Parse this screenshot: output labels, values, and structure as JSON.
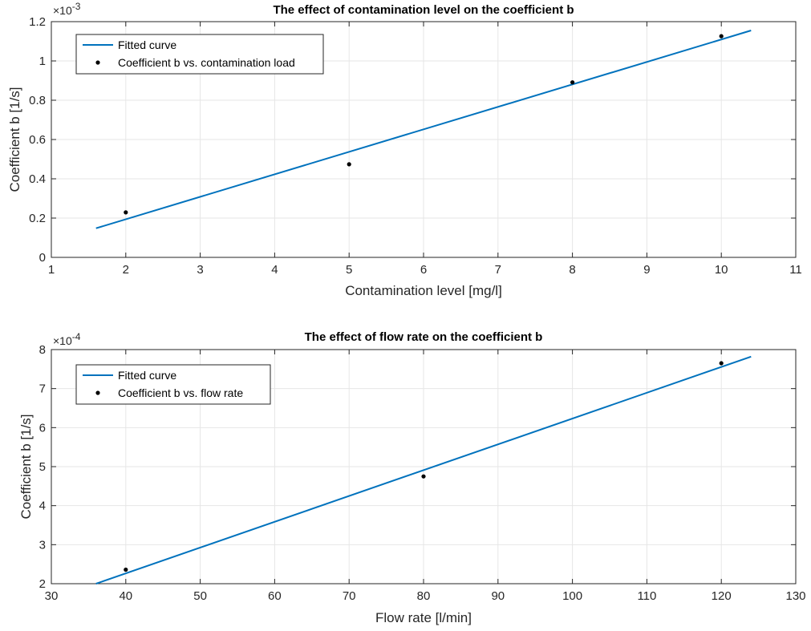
{
  "chart_data": [
    {
      "type": "line",
      "title": "The effect of contamination level on the coefficient b",
      "xlabel": "Contamination level [mg/l]",
      "ylabel": "Coefficient b [1/s]",
      "xlim": [
        1,
        11
      ],
      "ylim": [
        0,
        0.0012
      ],
      "x_ticks": [
        "1",
        "2",
        "3",
        "4",
        "5",
        "6",
        "7",
        "8",
        "9",
        "10",
        "11"
      ],
      "y_ticks": [
        "0",
        "0.2",
        "0.4",
        "0.6",
        "0.8",
        "1",
        "1.2"
      ],
      "y_exponent": "×10",
      "y_exponent_power": "-3",
      "grid": true,
      "legend_position": "top-left",
      "series": [
        {
          "name": "Fitted curve",
          "type": "line",
          "color": "#0072BD",
          "x": [
            1.6,
            10.4
          ],
          "y": [
            0.000148,
            0.001155
          ]
        },
        {
          "name": "Coefficient b vs. contamination load",
          "type": "scatter",
          "color": "#000000",
          "x": [
            2,
            5,
            8,
            10
          ],
          "y": [
            0.000229,
            0.000474,
            0.000891,
            0.001126
          ]
        }
      ]
    },
    {
      "type": "line",
      "title": "The effect of flow rate on the coefficient b",
      "xlabel": "Flow rate [l/min]",
      "ylabel": "Coefficient b [1/s]",
      "xlim": [
        30,
        130
      ],
      "ylim": [
        0.0002,
        0.0008
      ],
      "x_ticks": [
        "30",
        "40",
        "50",
        "60",
        "70",
        "80",
        "90",
        "100",
        "110",
        "120",
        "130"
      ],
      "y_ticks": [
        "2",
        "3",
        "4",
        "5",
        "6",
        "7",
        "8"
      ],
      "y_exponent": "×10",
      "y_exponent_power": "-4",
      "grid": true,
      "legend_position": "top-left",
      "series": [
        {
          "name": "Fitted curve",
          "type": "line",
          "color": "#0072BD",
          "x": [
            36,
            124
          ],
          "y": [
            0.0002,
            0.000782
          ]
        },
        {
          "name": "Coefficient b vs. flow rate",
          "type": "scatter",
          "color": "#000000",
          "x": [
            40,
            80,
            120
          ],
          "y": [
            0.000236,
            0.000475,
            0.000765
          ]
        }
      ]
    }
  ]
}
